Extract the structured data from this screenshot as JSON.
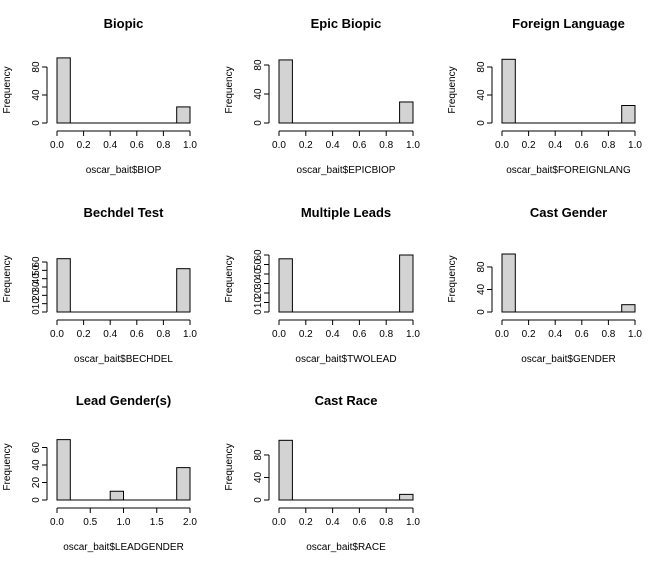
{
  "chart_data": [
    {
      "type": "bar",
      "title": "Biopic",
      "xlabel": "oscar_bait$BIOP",
      "ylabel": "Frequency",
      "bins": [
        [
          0.0,
          0.1
        ],
        [
          0.9,
          1.0
        ]
      ],
      "values": [
        93,
        23
      ],
      "xlim": [
        0,
        1
      ],
      "ylim": [
        0,
        95
      ],
      "xticks": [
        "0.0",
        "0.2",
        "0.4",
        "0.6",
        "0.8",
        "1.0"
      ],
      "yticks": [
        "0",
        "40",
        "80"
      ]
    },
    {
      "type": "bar",
      "title": "Epic Biopic",
      "xlabel": "oscar_bait$EPICBIOP",
      "ylabel": "Frequency",
      "bins": [
        [
          0.0,
          0.1
        ],
        [
          0.9,
          1.0
        ]
      ],
      "values": [
        87,
        29
      ],
      "xlim": [
        0,
        1
      ],
      "ylim": [
        0,
        90
      ],
      "xticks": [
        "0.0",
        "0.2",
        "0.4",
        "0.6",
        "0.8",
        "1.0"
      ],
      "yticks": [
        "0",
        "40",
        "80"
      ]
    },
    {
      "type": "bar",
      "title": "Foreign Language",
      "xlabel": "oscar_bait$FOREIGNLANG",
      "ylabel": "Frequency",
      "bins": [
        [
          0.0,
          0.1
        ],
        [
          0.9,
          1.0
        ]
      ],
      "values": [
        91,
        25
      ],
      "xlim": [
        0,
        1
      ],
      "ylim": [
        0,
        95
      ],
      "xticks": [
        "0.0",
        "0.2",
        "0.4",
        "0.6",
        "0.8",
        "1.0"
      ],
      "yticks": [
        "0",
        "40",
        "80"
      ]
    },
    {
      "type": "bar",
      "title": "Bechdel Test",
      "xlabel": "oscar_bait$BECHDEL",
      "ylabel": "Frequency",
      "bins": [
        [
          0.0,
          0.1
        ],
        [
          0.9,
          1.0
        ]
      ],
      "values": [
        64,
        52
      ],
      "xlim": [
        0,
        1
      ],
      "ylim": [
        0,
        66
      ],
      "xticks": [
        "0.0",
        "0.2",
        "0.4",
        "0.6",
        "0.8",
        "1.0"
      ],
      "yticks": [
        "0",
        "10",
        "20",
        "30",
        "40",
        "50",
        "60"
      ]
    },
    {
      "type": "bar",
      "title": "Multiple Leads",
      "xlabel": "oscar_bait$TWOLEAD",
      "ylabel": "Frequency",
      "bins": [
        [
          0.0,
          0.1
        ],
        [
          0.9,
          1.0
        ]
      ],
      "values": [
        56,
        60
      ],
      "xlim": [
        0,
        1
      ],
      "ylim": [
        0,
        62
      ],
      "xticks": [
        "0.0",
        "0.2",
        "0.4",
        "0.6",
        "0.8",
        "1.0"
      ],
      "yticks": [
        "0",
        "10",
        "20",
        "30",
        "40",
        "50",
        "60"
      ]
    },
    {
      "type": "bar",
      "title": "Cast Gender",
      "xlabel": "oscar_bait$GENDER",
      "ylabel": "Frequency",
      "bins": [
        [
          0.0,
          0.1
        ],
        [
          0.9,
          1.0
        ]
      ],
      "values": [
        103,
        13
      ],
      "xlim": [
        0,
        1
      ],
      "ylim": [
        0,
        105
      ],
      "xticks": [
        "0.0",
        "0.2",
        "0.4",
        "0.6",
        "0.8",
        "1.0"
      ],
      "yticks": [
        "0",
        "40",
        "80"
      ]
    },
    {
      "type": "bar",
      "title": "Lead Gender(s)",
      "xlabel": "oscar_bait$LEADGENDER",
      "ylabel": "Frequency",
      "bins": [
        [
          0.0,
          0.2
        ],
        [
          0.8,
          1.0
        ],
        [
          1.8,
          2.0
        ]
      ],
      "values": [
        69,
        10,
        37
      ],
      "xlim": [
        0,
        2
      ],
      "ylim": [
        0,
        70
      ],
      "xticks": [
        "0.0",
        "0.5",
        "1.0",
        "1.5",
        "2.0"
      ],
      "yticks": [
        "0",
        "20",
        "40",
        "60"
      ]
    },
    {
      "type": "bar",
      "title": "Cast Race",
      "xlabel": "oscar_bait$RACE",
      "ylabel": "Frequency",
      "bins": [
        [
          0.0,
          0.1
        ],
        [
          0.9,
          1.0
        ]
      ],
      "values": [
        106,
        10
      ],
      "xlim": [
        0,
        1
      ],
      "ylim": [
        0,
        108
      ],
      "xticks": [
        "0.0",
        "0.2",
        "0.4",
        "0.6",
        "0.8",
        "1.0"
      ],
      "yticks": [
        "0",
        "40",
        "80"
      ]
    }
  ],
  "colors": {
    "bar_fill": "#d3d3d3",
    "bar_stroke": "#000000"
  }
}
